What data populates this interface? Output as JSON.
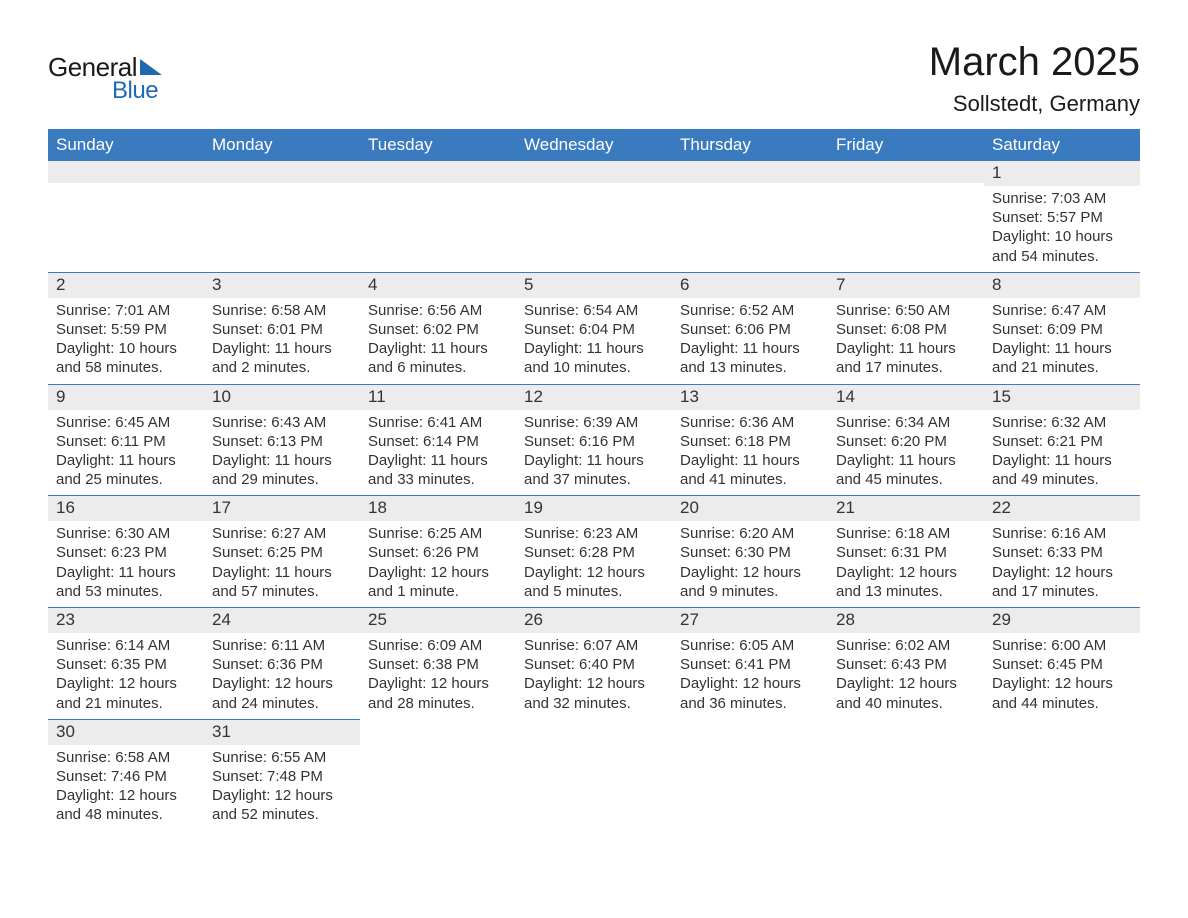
{
  "logo": {
    "text1": "General",
    "text2": "Blue"
  },
  "title": "March 2025",
  "location": "Sollstedt, Germany",
  "colors": {
    "header_bg": "#3a7bbf",
    "header_text": "#ffffff",
    "daynum_bg": "#ececec",
    "row_border": "#3a7bbf",
    "body_text": "#333333",
    "logo_blue": "#1f6bb0",
    "page_bg": "#ffffff"
  },
  "weekdays": [
    "Sunday",
    "Monday",
    "Tuesday",
    "Wednesday",
    "Thursday",
    "Friday",
    "Saturday"
  ],
  "weeks": [
    [
      {
        "day": "",
        "sunrise": "",
        "sunset": "",
        "daylight1": "",
        "daylight2": ""
      },
      {
        "day": "",
        "sunrise": "",
        "sunset": "",
        "daylight1": "",
        "daylight2": ""
      },
      {
        "day": "",
        "sunrise": "",
        "sunset": "",
        "daylight1": "",
        "daylight2": ""
      },
      {
        "day": "",
        "sunrise": "",
        "sunset": "",
        "daylight1": "",
        "daylight2": ""
      },
      {
        "day": "",
        "sunrise": "",
        "sunset": "",
        "daylight1": "",
        "daylight2": ""
      },
      {
        "day": "",
        "sunrise": "",
        "sunset": "",
        "daylight1": "",
        "daylight2": ""
      },
      {
        "day": "1",
        "sunrise": "Sunrise: 7:03 AM",
        "sunset": "Sunset: 5:57 PM",
        "daylight1": "Daylight: 10 hours",
        "daylight2": "and 54 minutes."
      }
    ],
    [
      {
        "day": "2",
        "sunrise": "Sunrise: 7:01 AM",
        "sunset": "Sunset: 5:59 PM",
        "daylight1": "Daylight: 10 hours",
        "daylight2": "and 58 minutes."
      },
      {
        "day": "3",
        "sunrise": "Sunrise: 6:58 AM",
        "sunset": "Sunset: 6:01 PM",
        "daylight1": "Daylight: 11 hours",
        "daylight2": "and 2 minutes."
      },
      {
        "day": "4",
        "sunrise": "Sunrise: 6:56 AM",
        "sunset": "Sunset: 6:02 PM",
        "daylight1": "Daylight: 11 hours",
        "daylight2": "and 6 minutes."
      },
      {
        "day": "5",
        "sunrise": "Sunrise: 6:54 AM",
        "sunset": "Sunset: 6:04 PM",
        "daylight1": "Daylight: 11 hours",
        "daylight2": "and 10 minutes."
      },
      {
        "day": "6",
        "sunrise": "Sunrise: 6:52 AM",
        "sunset": "Sunset: 6:06 PM",
        "daylight1": "Daylight: 11 hours",
        "daylight2": "and 13 minutes."
      },
      {
        "day": "7",
        "sunrise": "Sunrise: 6:50 AM",
        "sunset": "Sunset: 6:08 PM",
        "daylight1": "Daylight: 11 hours",
        "daylight2": "and 17 minutes."
      },
      {
        "day": "8",
        "sunrise": "Sunrise: 6:47 AM",
        "sunset": "Sunset: 6:09 PM",
        "daylight1": "Daylight: 11 hours",
        "daylight2": "and 21 minutes."
      }
    ],
    [
      {
        "day": "9",
        "sunrise": "Sunrise: 6:45 AM",
        "sunset": "Sunset: 6:11 PM",
        "daylight1": "Daylight: 11 hours",
        "daylight2": "and 25 minutes."
      },
      {
        "day": "10",
        "sunrise": "Sunrise: 6:43 AM",
        "sunset": "Sunset: 6:13 PM",
        "daylight1": "Daylight: 11 hours",
        "daylight2": "and 29 minutes."
      },
      {
        "day": "11",
        "sunrise": "Sunrise: 6:41 AM",
        "sunset": "Sunset: 6:14 PM",
        "daylight1": "Daylight: 11 hours",
        "daylight2": "and 33 minutes."
      },
      {
        "day": "12",
        "sunrise": "Sunrise: 6:39 AM",
        "sunset": "Sunset: 6:16 PM",
        "daylight1": "Daylight: 11 hours",
        "daylight2": "and 37 minutes."
      },
      {
        "day": "13",
        "sunrise": "Sunrise: 6:36 AM",
        "sunset": "Sunset: 6:18 PM",
        "daylight1": "Daylight: 11 hours",
        "daylight2": "and 41 minutes."
      },
      {
        "day": "14",
        "sunrise": "Sunrise: 6:34 AM",
        "sunset": "Sunset: 6:20 PM",
        "daylight1": "Daylight: 11 hours",
        "daylight2": "and 45 minutes."
      },
      {
        "day": "15",
        "sunrise": "Sunrise: 6:32 AM",
        "sunset": "Sunset: 6:21 PM",
        "daylight1": "Daylight: 11 hours",
        "daylight2": "and 49 minutes."
      }
    ],
    [
      {
        "day": "16",
        "sunrise": "Sunrise: 6:30 AM",
        "sunset": "Sunset: 6:23 PM",
        "daylight1": "Daylight: 11 hours",
        "daylight2": "and 53 minutes."
      },
      {
        "day": "17",
        "sunrise": "Sunrise: 6:27 AM",
        "sunset": "Sunset: 6:25 PM",
        "daylight1": "Daylight: 11 hours",
        "daylight2": "and 57 minutes."
      },
      {
        "day": "18",
        "sunrise": "Sunrise: 6:25 AM",
        "sunset": "Sunset: 6:26 PM",
        "daylight1": "Daylight: 12 hours",
        "daylight2": "and 1 minute."
      },
      {
        "day": "19",
        "sunrise": "Sunrise: 6:23 AM",
        "sunset": "Sunset: 6:28 PM",
        "daylight1": "Daylight: 12 hours",
        "daylight2": "and 5 minutes."
      },
      {
        "day": "20",
        "sunrise": "Sunrise: 6:20 AM",
        "sunset": "Sunset: 6:30 PM",
        "daylight1": "Daylight: 12 hours",
        "daylight2": "and 9 minutes."
      },
      {
        "day": "21",
        "sunrise": "Sunrise: 6:18 AM",
        "sunset": "Sunset: 6:31 PM",
        "daylight1": "Daylight: 12 hours",
        "daylight2": "and 13 minutes."
      },
      {
        "day": "22",
        "sunrise": "Sunrise: 6:16 AM",
        "sunset": "Sunset: 6:33 PM",
        "daylight1": "Daylight: 12 hours",
        "daylight2": "and 17 minutes."
      }
    ],
    [
      {
        "day": "23",
        "sunrise": "Sunrise: 6:14 AM",
        "sunset": "Sunset: 6:35 PM",
        "daylight1": "Daylight: 12 hours",
        "daylight2": "and 21 minutes."
      },
      {
        "day": "24",
        "sunrise": "Sunrise: 6:11 AM",
        "sunset": "Sunset: 6:36 PM",
        "daylight1": "Daylight: 12 hours",
        "daylight2": "and 24 minutes."
      },
      {
        "day": "25",
        "sunrise": "Sunrise: 6:09 AM",
        "sunset": "Sunset: 6:38 PM",
        "daylight1": "Daylight: 12 hours",
        "daylight2": "and 28 minutes."
      },
      {
        "day": "26",
        "sunrise": "Sunrise: 6:07 AM",
        "sunset": "Sunset: 6:40 PM",
        "daylight1": "Daylight: 12 hours",
        "daylight2": "and 32 minutes."
      },
      {
        "day": "27",
        "sunrise": "Sunrise: 6:05 AM",
        "sunset": "Sunset: 6:41 PM",
        "daylight1": "Daylight: 12 hours",
        "daylight2": "and 36 minutes."
      },
      {
        "day": "28",
        "sunrise": "Sunrise: 6:02 AM",
        "sunset": "Sunset: 6:43 PM",
        "daylight1": "Daylight: 12 hours",
        "daylight2": "and 40 minutes."
      },
      {
        "day": "29",
        "sunrise": "Sunrise: 6:00 AM",
        "sunset": "Sunset: 6:45 PM",
        "daylight1": "Daylight: 12 hours",
        "daylight2": "and 44 minutes."
      }
    ],
    [
      {
        "day": "30",
        "sunrise": "Sunrise: 6:58 AM",
        "sunset": "Sunset: 7:46 PM",
        "daylight1": "Daylight: 12 hours",
        "daylight2": "and 48 minutes."
      },
      {
        "day": "31",
        "sunrise": "Sunrise: 6:55 AM",
        "sunset": "Sunset: 7:48 PM",
        "daylight1": "Daylight: 12 hours",
        "daylight2": "and 52 minutes."
      },
      {
        "day": "",
        "sunrise": "",
        "sunset": "",
        "daylight1": "",
        "daylight2": ""
      },
      {
        "day": "",
        "sunrise": "",
        "sunset": "",
        "daylight1": "",
        "daylight2": ""
      },
      {
        "day": "",
        "sunrise": "",
        "sunset": "",
        "daylight1": "",
        "daylight2": ""
      },
      {
        "day": "",
        "sunrise": "",
        "sunset": "",
        "daylight1": "",
        "daylight2": ""
      },
      {
        "day": "",
        "sunrise": "",
        "sunset": "",
        "daylight1": "",
        "daylight2": ""
      }
    ]
  ]
}
